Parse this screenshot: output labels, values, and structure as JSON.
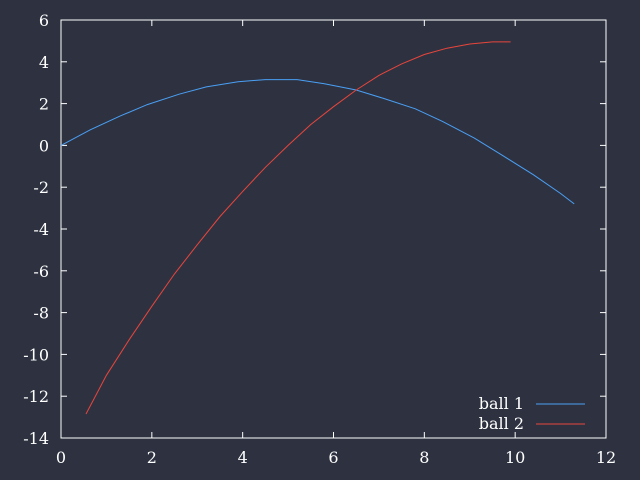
{
  "chart_data": {
    "type": "line",
    "xlim": [
      0,
      12
    ],
    "ylim": [
      -14,
      6
    ],
    "x_ticks": [
      "0",
      "2",
      "4",
      "6",
      "8",
      "10",
      "12"
    ],
    "y_ticks": [
      "6",
      "4",
      "2",
      "0",
      "-2",
      "-4",
      "-6",
      "-8",
      "-10",
      "-12",
      "-14"
    ],
    "grid": false,
    "legend_position": "bottom-right",
    "colors": {
      "background": "#2e3240",
      "frame": "#ffffff",
      "text": "#ffffff"
    },
    "series": [
      {
        "name": "ball 1",
        "color": "#4a9ff5",
        "x": [
          0,
          0.65,
          1.3,
          1.9,
          2.6,
          3.2,
          3.9,
          4.5,
          5.2,
          5.8,
          6.5,
          7.1,
          7.8,
          8.4,
          9.1,
          9.7,
          10.4,
          11.0,
          11.3
        ],
        "y": [
          0.0,
          0.75,
          1.4,
          1.95,
          2.45,
          2.8,
          3.05,
          3.15,
          3.15,
          2.95,
          2.65,
          2.25,
          1.75,
          1.15,
          0.35,
          -0.45,
          -1.4,
          -2.3,
          -2.8
        ]
      },
      {
        "name": "ball 2",
        "color": "#e8453c",
        "x": [
          0.55,
          1.0,
          1.5,
          2.0,
          2.5,
          3.0,
          3.5,
          4.0,
          4.5,
          5.0,
          5.5,
          6.0,
          6.5,
          7.0,
          7.5,
          8.0,
          8.5,
          9.0,
          9.5,
          9.9
        ],
        "y": [
          -12.85,
          -11.0,
          -9.3,
          -7.7,
          -6.15,
          -4.75,
          -3.4,
          -2.2,
          -1.05,
          0.0,
          1.0,
          1.85,
          2.65,
          3.35,
          3.9,
          4.35,
          4.65,
          4.85,
          4.95,
          4.95
        ]
      }
    ]
  }
}
